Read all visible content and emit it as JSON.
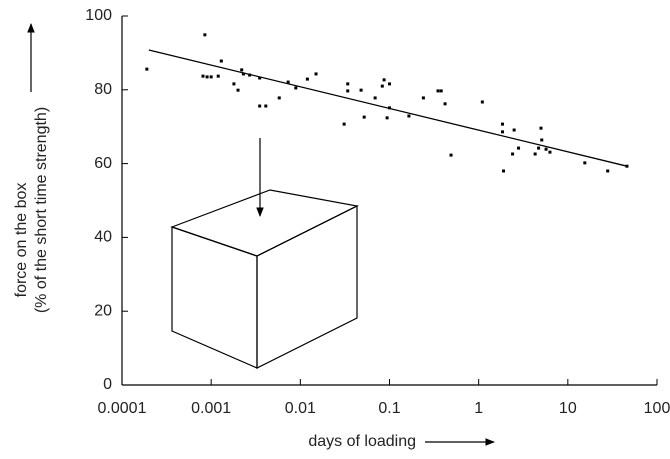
{
  "chart_data": {
    "type": "scatter",
    "xlabel": "days of loading",
    "ylabel": [
      "force on the box",
      "(% of the short time strength)"
    ],
    "xscale": "log",
    "xlim": [
      0.0001,
      100
    ],
    "xticks": [
      0.0001,
      0.001,
      0.01,
      0.1,
      1,
      10,
      100
    ],
    "ylim": [
      0,
      100
    ],
    "yticks": [
      0,
      20,
      40,
      60,
      80,
      100
    ],
    "color": "#000000",
    "points": {
      "x": [
        0.00019,
        0.00085,
        0.00081,
        0.0009,
        0.001,
        0.0012,
        0.0013,
        0.0018,
        0.002,
        0.0022,
        0.0023,
        0.0027,
        0.0035,
        0.0035,
        0.0041,
        0.0058,
        0.0073,
        0.0089,
        0.012,
        0.015,
        0.031,
        0.034,
        0.034,
        0.048,
        0.052,
        0.069,
        0.083,
        0.087,
        0.094,
        0.1,
        0.1,
        0.165,
        0.24,
        0.35,
        0.38,
        0.42,
        0.49,
        1.1,
        1.85,
        1.85,
        1.9,
        2.4,
        2.5,
        2.8,
        4.3,
        4.7,
        5.0,
        5.1,
        5.7,
        6.3,
        15.5,
        28,
        46
      ],
      "values": [
        85.6,
        94.9,
        83.7,
        83.5,
        83.5,
        83.7,
        87.8,
        81.6,
        79.9,
        85.4,
        84.3,
        84.0,
        83.2,
        75.6,
        75.6,
        77.8,
        82.1,
        80.5,
        82.9,
        84.3,
        70.7,
        81.6,
        79.7,
        79.9,
        72.6,
        77.8,
        81.0,
        82.7,
        72.4,
        81.6,
        75.1,
        72.9,
        77.8,
        79.7,
        79.7,
        76.2,
        62.3,
        76.7,
        70.7,
        68.6,
        58.0,
        62.6,
        69.1,
        64.2,
        62.6,
        64.2,
        69.6,
        66.4,
        63.9,
        63.1,
        60.2,
        58.0,
        59.3
      ]
    },
    "trendline": {
      "x": [
        0.0002,
        46
      ],
      "values": [
        90.8,
        59.3
      ]
    }
  }
}
